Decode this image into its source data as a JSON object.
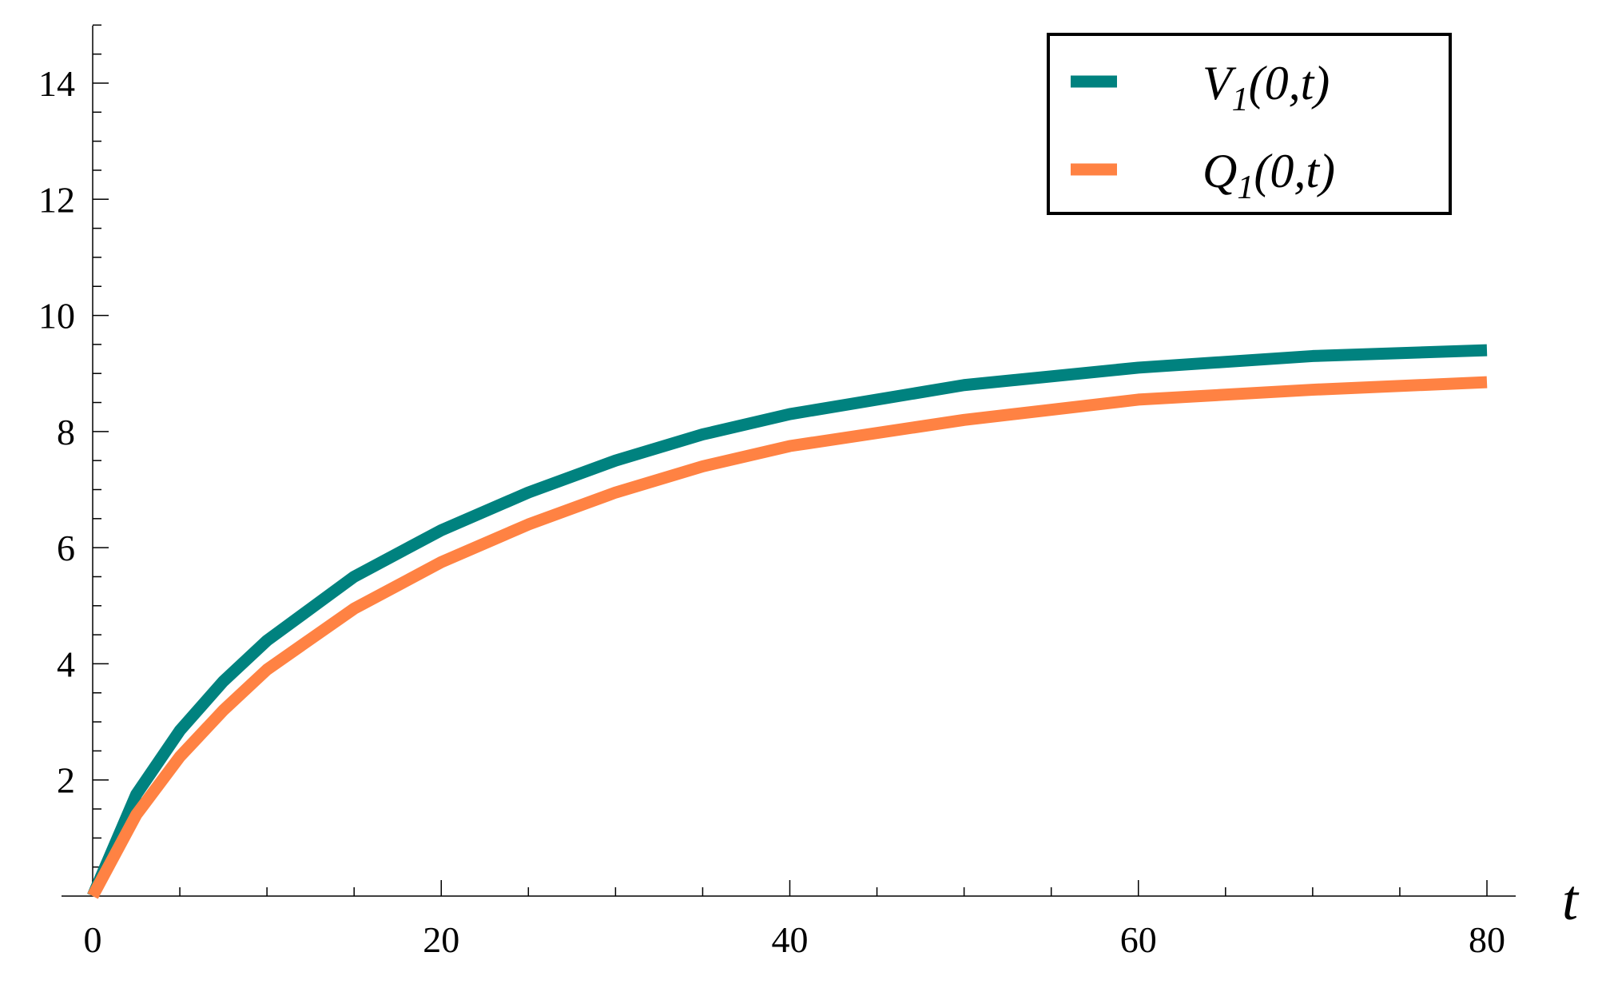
{
  "chart_data": {
    "type": "line",
    "title": "",
    "xlabel": "t",
    "ylabel": "",
    "xlim": [
      0,
      80
    ],
    "ylim": [
      0,
      15
    ],
    "x_ticks": [
      0,
      20,
      40,
      60,
      80
    ],
    "y_ticks": [
      2,
      4,
      6,
      8,
      10,
      12,
      14
    ],
    "grid": false,
    "legend_placement": "top-right",
    "series": [
      {
        "name": "V1(0,t)",
        "label_main": "V",
        "label_sub": "1",
        "label_args": "(0,t)",
        "color": "#00827f",
        "x": [
          0,
          2.5,
          5,
          7.5,
          10,
          15,
          20,
          25,
          30,
          35,
          40,
          50,
          60,
          70,
          80
        ],
        "y": [
          0,
          1.75,
          2.85,
          3.7,
          4.4,
          5.5,
          6.3,
          6.95,
          7.5,
          7.95,
          8.3,
          8.8,
          9.1,
          9.3,
          9.4
        ]
      },
      {
        "name": "Q1(0,t)",
        "label_main": "Q",
        "label_sub": "1",
        "label_args": "(0,t)",
        "color": "#ff8243",
        "x": [
          0,
          2.5,
          5,
          7.5,
          10,
          15,
          20,
          25,
          30,
          35,
          40,
          50,
          60,
          70,
          80
        ],
        "y": [
          0,
          1.4,
          2.4,
          3.2,
          3.9,
          4.95,
          5.75,
          6.4,
          6.95,
          7.4,
          7.75,
          8.2,
          8.55,
          8.72,
          8.85
        ]
      }
    ]
  }
}
